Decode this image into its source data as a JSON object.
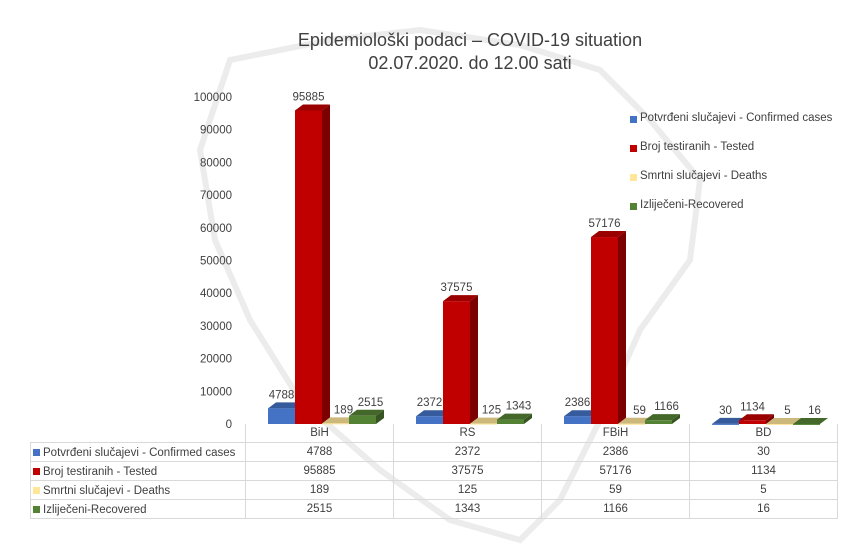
{
  "chart_data": {
    "type": "bar",
    "title": "Epidemiološki podaci – COVID-19 situation",
    "subtitle": "02.07.2020. do 12.00 sati",
    "categories": [
      "BiH",
      "RS",
      "FBiH",
      "BD"
    ],
    "series": [
      {
        "name": "Potvrđeni slučajevi - Confirmed cases",
        "color": "#4472c4",
        "values": [
          4788,
          2372,
          2386,
          30
        ]
      },
      {
        "name": "Broj testiranih - Tested",
        "color": "#c00000",
        "values": [
          95885,
          37575,
          57176,
          1134
        ]
      },
      {
        "name": "Smrtni slučajevi - Deaths",
        "color": "#ffe699",
        "values": [
          189,
          125,
          59,
          5
        ]
      },
      {
        "name": "Izliječeni-Recovered",
        "color": "#548235",
        "values": [
          2515,
          1343,
          1166,
          16
        ]
      }
    ],
    "ylim": [
      0,
      100000
    ],
    "yticks": [
      0,
      10000,
      20000,
      30000,
      40000,
      50000,
      60000,
      70000,
      80000,
      90000,
      100000
    ],
    "legend": "right",
    "grid": false,
    "data_table": true,
    "style": "3d-clustered-column"
  }
}
